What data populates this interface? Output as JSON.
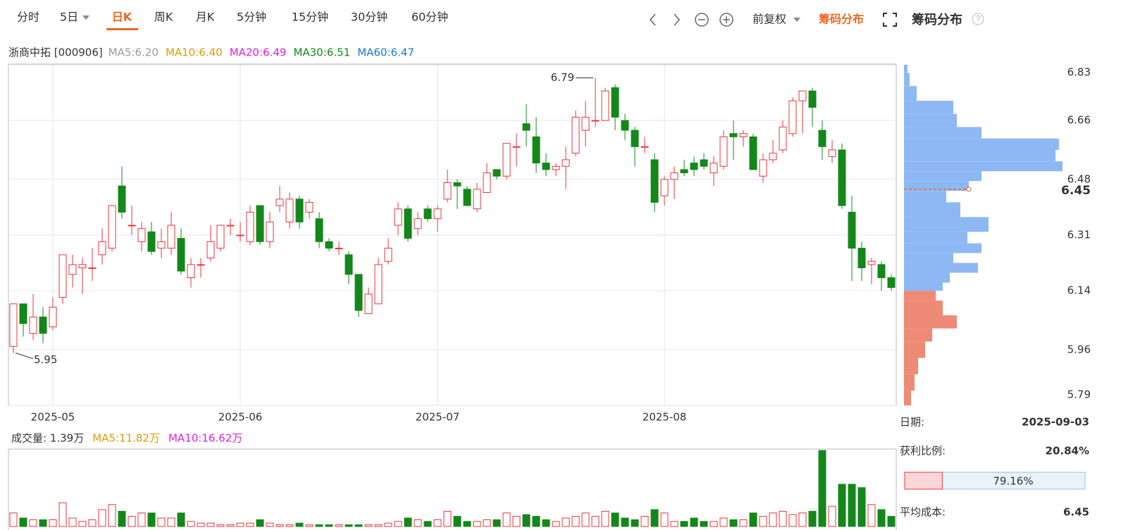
{
  "toolbar": {
    "tabs": [
      "分时",
      "5日",
      "日K",
      "周K",
      "月K",
      "5分钟",
      "15分钟",
      "30分钟",
      "60分钟"
    ],
    "adjust": "前复权",
    "chip_link": "筹码分布"
  },
  "chart_data": {
    "type": "candlestick",
    "title": "浙商中拓 [000906]",
    "ma_legend": [
      {
        "text": "MA5:6.20",
        "color": "#999999"
      },
      {
        "text": "MA10:6.40",
        "color": "#e09a00"
      },
      {
        "text": "MA20:6.49",
        "color": "#e020e0"
      },
      {
        "text": "MA30:6.51",
        "color": "#138a13"
      },
      {
        "text": "MA60:6.47",
        "color": "#1878d0"
      }
    ],
    "categories": [
      null,
      null,
      null,
      null,
      "2025-05",
      null,
      null,
      null,
      null,
      null,
      null,
      null,
      null,
      null,
      null,
      null,
      null,
      null,
      null,
      null,
      null,
      null,
      null,
      "2025-06",
      null,
      null,
      null,
      null,
      null,
      null,
      null,
      null,
      null,
      null,
      null,
      null,
      null,
      null,
      null,
      null,
      null,
      null,
      null,
      "2025-07",
      null,
      null,
      null,
      null,
      null,
      null,
      null,
      null,
      null,
      null,
      null,
      null,
      null,
      null,
      null,
      null,
      null,
      null,
      null,
      null,
      null,
      null,
      "2025-08",
      null,
      null,
      null,
      null,
      null,
      null,
      null,
      null,
      null,
      null,
      null,
      null,
      null,
      null,
      null,
      null,
      null,
      null,
      null,
      null,
      null,
      null,
      null
    ],
    "open": [
      5.97,
      6.1,
      6.01,
      6.06,
      6.03,
      6.12,
      6.19,
      6.21,
      6.21,
      6.25,
      6.27,
      6.46,
      6.34,
      6.29,
      6.32,
      6.27,
      6.27,
      6.3,
      6.18,
      6.22,
      6.24,
      6.27,
      6.34,
      6.31,
      6.29,
      6.4,
      6.29,
      6.4,
      6.35,
      6.42,
      6.38,
      6.36,
      6.29,
      6.27,
      6.25,
      6.19,
      6.07,
      6.1,
      6.23,
      6.34,
      6.39,
      6.33,
      6.39,
      6.36,
      6.42,
      6.47,
      6.45,
      6.39,
      6.44,
      6.51,
      6.49,
      6.58,
      6.65,
      6.61,
      6.53,
      6.51,
      6.52,
      6.56,
      6.63,
      6.66,
      6.66,
      6.76,
      6.66,
      6.63,
      6.58,
      6.54,
      6.43,
      6.48,
      6.51,
      6.53,
      6.54,
      6.5,
      6.52,
      6.62,
      6.61,
      6.61,
      6.49,
      6.54,
      6.57,
      6.62,
      6.72,
      6.75,
      6.63,
      6.55,
      6.57,
      6.38,
      6.27,
      6.22,
      6.22,
      6.18
    ],
    "close": [
      6.1,
      6.04,
      6.06,
      6.01,
      6.09,
      6.25,
      6.22,
      6.22,
      6.21,
      6.29,
      6.4,
      6.38,
      6.34,
      6.33,
      6.26,
      6.29,
      6.34,
      6.2,
      6.22,
      6.22,
      6.29,
      6.34,
      6.34,
      6.31,
      6.38,
      6.29,
      6.35,
      6.42,
      6.42,
      6.35,
      6.41,
      6.29,
      6.27,
      6.27,
      6.19,
      6.08,
      6.13,
      6.22,
      6.27,
      6.39,
      6.3,
      6.36,
      6.36,
      6.39,
      6.47,
      6.46,
      6.4,
      6.45,
      6.5,
      6.49,
      6.59,
      6.58,
      6.63,
      6.53,
      6.51,
      6.52,
      6.54,
      6.67,
      6.67,
      6.66,
      6.75,
      6.67,
      6.63,
      6.58,
      6.58,
      6.41,
      6.48,
      6.5,
      6.5,
      6.51,
      6.52,
      6.53,
      6.61,
      6.61,
      6.62,
      6.51,
      6.54,
      6.56,
      6.64,
      6.72,
      6.75,
      6.7,
      6.58,
      6.57,
      6.4,
      6.27,
      6.21,
      6.23,
      6.18,
      6.15
    ],
    "high": [
      6.1,
      6.1,
      6.13,
      6.09,
      6.12,
      6.25,
      6.25,
      6.24,
      6.27,
      6.33,
      6.4,
      6.52,
      6.4,
      6.35,
      6.35,
      6.33,
      6.38,
      6.33,
      6.24,
      6.24,
      6.34,
      6.34,
      6.36,
      6.35,
      6.4,
      6.4,
      6.38,
      6.46,
      6.44,
      6.43,
      6.42,
      6.38,
      6.3,
      6.29,
      6.26,
      6.19,
      6.15,
      6.24,
      6.3,
      6.41,
      6.4,
      6.38,
      6.4,
      6.4,
      6.51,
      6.48,
      6.46,
      6.47,
      6.53,
      6.51,
      6.59,
      6.62,
      6.71,
      6.67,
      6.56,
      6.53,
      6.58,
      6.69,
      6.72,
      6.79,
      6.76,
      6.77,
      6.68,
      6.64,
      6.61,
      6.56,
      6.49,
      6.52,
      6.54,
      6.55,
      6.56,
      6.55,
      6.63,
      6.66,
      6.63,
      6.62,
      6.56,
      6.6,
      6.66,
      6.73,
      6.75,
      6.76,
      6.66,
      6.6,
      6.59,
      6.43,
      6.29,
      6.24,
      6.23,
      6.19
    ],
    "low": [
      5.95,
      6.0,
      5.99,
      5.98,
      6.02,
      6.1,
      6.15,
      6.13,
      6.17,
      6.22,
      6.26,
      6.36,
      6.31,
      6.26,
      6.25,
      6.24,
      6.25,
      6.19,
      6.15,
      6.18,
      6.23,
      6.26,
      6.31,
      6.29,
      6.28,
      6.28,
      6.27,
      6.38,
      6.33,
      6.33,
      6.36,
      6.27,
      6.26,
      6.25,
      6.16,
      6.06,
      6.07,
      6.1,
      6.22,
      6.31,
      6.29,
      6.31,
      6.35,
      6.32,
      6.41,
      6.39,
      6.4,
      6.38,
      6.44,
      6.48,
      6.48,
      6.52,
      6.58,
      6.5,
      6.49,
      6.49,
      6.45,
      6.55,
      6.58,
      6.64,
      6.66,
      6.63,
      6.6,
      6.52,
      6.56,
      6.38,
      6.4,
      6.42,
      6.49,
      6.49,
      6.51,
      6.46,
      6.51,
      6.54,
      6.58,
      6.51,
      6.47,
      6.53,
      6.56,
      6.61,
      6.62,
      6.64,
      6.54,
      6.53,
      6.39,
      6.17,
      6.17,
      6.16,
      6.14,
      6.14
    ],
    "up_color": "#e8343b",
    "down_color": "#14871a",
    "max_label": 6.79,
    "min_label": 5.95,
    "ylim": [
      5.79,
      6.83
    ],
    "yticks": [
      6.83,
      6.66,
      6.48,
      6.31,
      6.14,
      5.96,
      5.79
    ],
    "grid": true
  },
  "volume_chart": {
    "type": "bar",
    "legend": [
      {
        "text": "成交量: 1.39万",
        "color": "#333333"
      },
      {
        "text": "MA5:11.82万",
        "color": "#e09a00"
      },
      {
        "text": "MA10:16.62万",
        "color": "#e020e0"
      }
    ],
    "values": [
      8,
      5,
      4,
      4,
      4,
      14,
      5,
      3,
      4,
      10,
      13,
      9,
      6,
      8,
      8,
      5,
      5,
      8,
      3,
      2,
      2,
      1,
      1,
      2,
      2,
      4,
      2,
      1,
      1,
      2,
      1,
      1,
      1,
      1,
      1,
      1,
      1,
      1,
      2,
      3,
      5,
      4,
      3,
      4,
      9,
      6,
      3,
      3,
      4,
      4,
      8,
      6,
      7,
      6,
      4,
      3,
      5,
      6,
      8,
      6,
      9,
      8,
      5,
      4,
      6,
      10,
      8,
      3,
      3,
      5,
      3,
      3,
      5,
      4,
      4,
      8,
      6,
      8,
      9,
      7,
      8,
      9,
      45,
      12,
      25,
      25,
      23,
      13,
      10,
      6
    ],
    "ylim": [
      0,
      45
    ]
  },
  "chip_distribution": {
    "title": "筹码分布",
    "prices": [
      6.82,
      6.79,
      6.74,
      6.7,
      6.66,
      6.62,
      6.59,
      6.55,
      6.52,
      6.49,
      6.46,
      6.43,
      6.39,
      6.34,
      6.3,
      6.27,
      6.24,
      6.21,
      6.18,
      6.15,
      6.13,
      6.09,
      6.04,
      6.01,
      5.96,
      5.91,
      5.86,
      5.81
    ],
    "amounts": [
      5,
      8,
      18,
      70,
      75,
      110,
      220,
      215,
      225,
      110,
      92,
      60,
      80,
      120,
      90,
      110,
      70,
      105,
      65,
      55,
      45,
      55,
      75,
      40,
      30,
      20,
      15,
      10
    ],
    "loss_color": "#8db8f4",
    "profit_color": "#ee8a76",
    "avg_cost": 6.45,
    "date_label": "日期:",
    "date": "2025-09-03",
    "profit_label": "获利比例:",
    "profit_ratio": {
      "value": 20.84,
      "label": "20.84%"
    },
    "loss_ratio": {
      "value": 79.16,
      "label": "79.16%"
    },
    "avg_label": "平均成本:"
  }
}
